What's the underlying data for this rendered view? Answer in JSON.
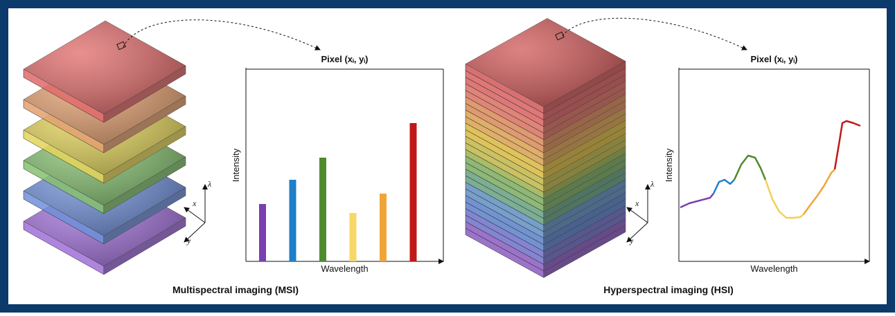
{
  "msi": {
    "caption": "Multispectral imaging (MSI)",
    "axes_triad": [
      "x",
      "y",
      "λ"
    ],
    "chart": {
      "title": "Pixel (xᵢ, yᵢ)",
      "x_label": "Wavelength",
      "y_label": "Intensity",
      "ylim": [
        0,
        278
      ],
      "bars": [
        {
          "color": "#7a3fb0",
          "value": 83
        },
        {
          "color": "#1f7fc8",
          "value": 118
        },
        {
          "color": "#4f8a2e",
          "value": 150
        },
        {
          "color": "#f7d766",
          "value": 70
        },
        {
          "color": "#f0a538",
          "value": 98
        },
        {
          "color": "#c01818",
          "value": 200
        }
      ]
    }
  },
  "hsi": {
    "caption": "Hyperspectral imaging (HSI)",
    "axes_triad": [
      "x",
      "y",
      "λ"
    ],
    "chart": {
      "title": "Pixel (xᵢ, yᵢ)",
      "x_label": "Wavelength",
      "y_label": "Intensity",
      "xlim": [
        0,
        275
      ],
      "ylim": [
        0,
        278
      ],
      "series": [
        {
          "color": "#7a3fb0",
          "x": [
            2,
            15,
            30,
            45,
            50
          ],
          "values": [
            78,
            84,
            88,
            92,
            98
          ]
        },
        {
          "color": "#1f7fc8",
          "x": [
            50,
            58,
            66,
            74,
            80
          ],
          "values": [
            98,
            115,
            118,
            112,
            118
          ]
        },
        {
          "color": "#4f8a2e",
          "x": [
            80,
            90,
            100,
            110,
            118,
            125
          ],
          "values": [
            118,
            140,
            153,
            150,
            135,
            118
          ]
        },
        {
          "color": "#f2cf55",
          "x": [
            125,
            135,
            145,
            155,
            165,
            175,
            180
          ],
          "values": [
            118,
            90,
            72,
            63,
            63,
            64,
            68
          ]
        },
        {
          "color": "#f0a538",
          "x": [
            180,
            190,
            200,
            210,
            220,
            225
          ],
          "values": [
            68,
            82,
            95,
            110,
            128,
            133
          ]
        },
        {
          "color": "#c01818",
          "x": [
            225,
            232,
            236,
            242,
            252,
            262
          ],
          "values": [
            133,
            175,
            200,
            203,
            200,
            196
          ]
        }
      ]
    }
  }
}
